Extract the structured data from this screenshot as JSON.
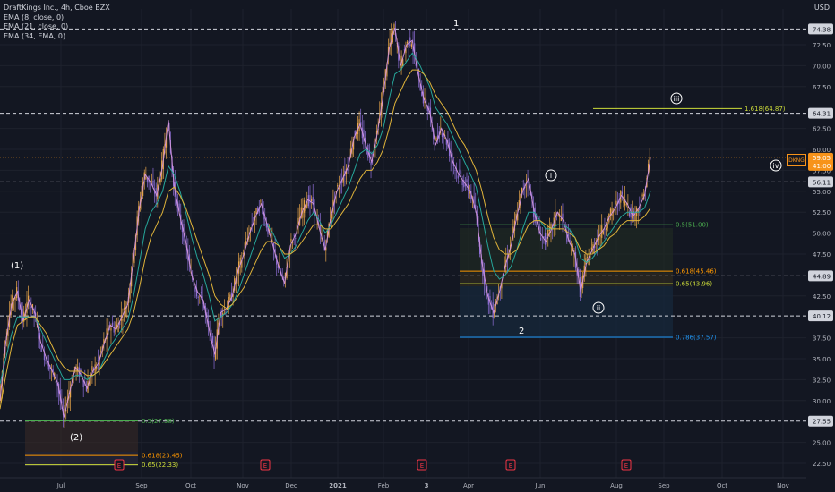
{
  "header": {
    "symbol_title": "DraftKings Inc., 4h, Cboe BZX",
    "indicators": [
      "EMA (8, close, 0)",
      "EMA (21, close, 0)",
      "EMA (34, EMA, 0)"
    ],
    "currency": "USD",
    "ticker": "DKNG"
  },
  "chart_data": {
    "type": "line",
    "title": "DraftKings Inc., 4h, Cboe BZX",
    "xlabel": "",
    "ylabel": "",
    "ylim": [
      21.5,
      75.7
    ],
    "x_tick_labels": [
      "Jul",
      "Sep",
      "Oct",
      "Nov",
      "Dec",
      "2021",
      "Feb",
      "3",
      "Apr",
      "Jun",
      "Aug",
      "Sep",
      "Oct",
      "Nov"
    ],
    "y_tick_labels": [
      "72.50",
      "70.00",
      "67.50",
      "62.50",
      "60.00",
      "57.50",
      "55.00",
      "52.50",
      "50.00",
      "47.50",
      "42.50",
      "37.50",
      "35.00",
      "32.50",
      "30.00",
      "25.00",
      "22.50"
    ],
    "price_levels": [
      "74.38",
      "64.31",
      "56.11",
      "44.89",
      "40.12",
      "27.55"
    ],
    "current_price": "59.05",
    "countdown": "41:00",
    "series": [
      {
        "values": [
          30.0,
          37.0,
          41.5,
          43.0,
          39.5,
          42.0,
          40.5,
          37.0,
          35.0,
          33.5,
          32.0,
          28.0,
          31.0,
          34.0,
          33.0,
          31.5,
          33.5,
          34.5,
          37.0,
          39.0,
          38.5,
          40.0,
          41.5,
          47.0,
          53.0,
          57.0,
          56.0,
          54.5,
          58.0,
          63.5,
          55.5,
          52.0,
          49.0,
          45.0,
          43.0,
          42.0,
          38.5,
          35.5,
          40.5,
          41.0,
          42.5,
          45.5,
          47.5,
          50.0,
          52.0,
          53.5,
          51.0,
          48.5,
          46.0,
          44.0,
          48.5,
          50.0,
          52.5,
          54.0,
          53.5,
          50.5,
          48.0,
          52.0,
          55.0,
          56.5,
          58.0,
          61.5,
          63.0,
          60.5,
          58.5,
          62.0,
          66.5,
          72.0,
          74.5,
          70.0,
          72.5,
          73.0,
          69.0,
          66.0,
          64.5,
          60.5,
          62.5,
          61.0,
          58.5,
          57.0,
          56.0,
          55.0,
          52.5,
          46.5,
          42.5,
          40.5,
          43.0,
          46.0,
          48.5,
          52.0,
          55.0,
          56.5,
          52.5,
          50.0,
          49.0,
          50.5,
          52.5,
          51.5,
          49.0,
          47.5,
          43.0,
          46.5,
          48.0,
          49.5,
          50.5,
          52.0,
          53.0,
          54.5,
          53.5,
          52.0,
          53.0,
          54.5,
          59.0
        ]
      },
      {
        "values": [
          32.0,
          35.0,
          38.0,
          40.0,
          40.0,
          40.0,
          40.0,
          38.5,
          37.0,
          35.5,
          34.0,
          32.5,
          32.5,
          33.0,
          33.0,
          32.5,
          33.0,
          33.5,
          35.0,
          36.5,
          37.5,
          38.5,
          39.5,
          42.5,
          46.5,
          50.5,
          52.5,
          53.5,
          55.0,
          58.0,
          57.0,
          55.0,
          52.5,
          49.5,
          47.0,
          45.0,
          42.5,
          39.5,
          40.0,
          40.5,
          41.5,
          43.0,
          45.0,
          47.0,
          49.0,
          51.0,
          51.0,
          50.0,
          48.5,
          47.0,
          47.5,
          48.5,
          50.0,
          51.5,
          52.5,
          51.5,
          50.0,
          51.0,
          52.5,
          54.0,
          55.5,
          57.5,
          59.5,
          60.0,
          59.5,
          60.5,
          62.5,
          66.0,
          69.0,
          69.5,
          70.5,
          71.5,
          70.5,
          69.0,
          67.5,
          65.0,
          64.0,
          63.0,
          61.5,
          60.0,
          58.5,
          57.0,
          55.5,
          52.0,
          48.5,
          45.5,
          44.5,
          45.0,
          46.0,
          48.0,
          50.5,
          52.5,
          52.5,
          51.5,
          50.5,
          50.5,
          51.0,
          51.0,
          50.5,
          49.5,
          47.0,
          46.5,
          47.0,
          48.0,
          49.0,
          50.0,
          51.0,
          52.0,
          52.5,
          52.5,
          52.5,
          53.0,
          55.0
        ]
      },
      {
        "values": [
          29.0,
          33.0,
          36.5,
          39.0,
          39.5,
          40.0,
          40.0,
          39.0,
          38.0,
          36.5,
          35.0,
          34.0,
          33.5,
          33.5,
          33.5,
          33.0,
          33.0,
          33.5,
          34.5,
          35.5,
          36.5,
          37.5,
          38.5,
          40.5,
          43.5,
          47.0,
          49.5,
          51.0,
          52.5,
          55.0,
          55.5,
          54.5,
          53.0,
          51.0,
          49.0,
          47.0,
          45.0,
          42.5,
          41.5,
          41.0,
          41.5,
          42.5,
          43.5,
          45.0,
          46.5,
          48.0,
          49.0,
          49.0,
          48.5,
          47.5,
          47.5,
          48.0,
          49.0,
          50.0,
          51.0,
          51.0,
          50.5,
          50.5,
          51.5,
          52.5,
          53.5,
          55.0,
          56.5,
          57.5,
          57.5,
          58.5,
          60.0,
          62.5,
          65.5,
          67.0,
          68.5,
          69.5,
          69.5,
          69.0,
          68.0,
          66.5,
          65.5,
          64.5,
          63.0,
          61.5,
          60.5,
          59.0,
          57.5,
          55.0,
          52.0,
          49.5,
          48.0,
          47.5,
          47.5,
          48.0,
          49.5,
          51.0,
          51.5,
          51.5,
          51.0,
          50.5,
          50.5,
          50.5,
          50.0,
          49.5,
          48.0,
          47.5,
          47.5,
          48.0,
          48.5,
          49.5,
          50.0,
          51.0,
          51.5,
          51.5,
          51.5,
          52.0,
          53.0
        ]
      }
    ],
    "fib_left": [
      {
        "label": "0.5(27.58)"
      },
      {
        "label": "0.618(23.45)"
      },
      {
        "label": "0.65(22.33)"
      }
    ],
    "fib_right": [
      {
        "label": "0.5(51.00)"
      },
      {
        "label": "0.618(45.46)"
      },
      {
        "label": "0.65(43.96)"
      },
      {
        "label": "0.786(37.57)"
      }
    ],
    "fib_extension": {
      "label": "1.618(64.87)"
    },
    "wave_labels": [
      "(1)",
      "(2)",
      "1",
      "2",
      "i",
      "ii",
      "iii",
      "iv"
    ],
    "earnings_markers": [
      "E",
      "E",
      "E",
      "E",
      "E"
    ]
  }
}
